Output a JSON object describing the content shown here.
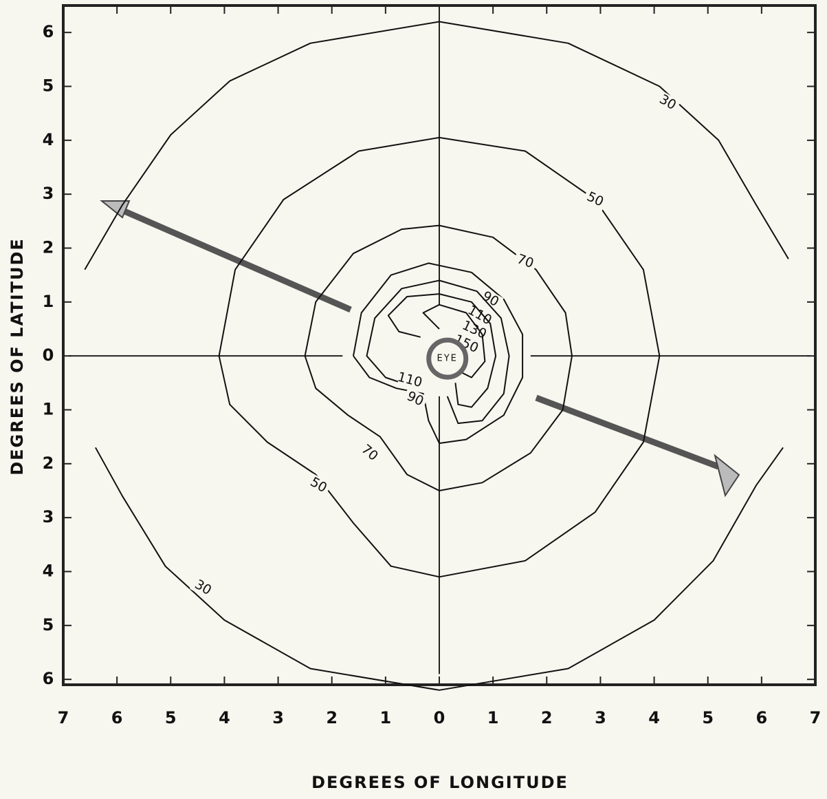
{
  "chart_data": {
    "type": "contour",
    "xlabel": "DEGREES OF LONGITUDE",
    "ylabel": "DEGREES OF LATITUDE",
    "annotation": "EYE",
    "xlim": [
      -7,
      7
    ],
    "ylim": [
      -6.1,
      6.5
    ],
    "xticks": [
      {
        "value": -7,
        "label": "7"
      },
      {
        "value": -6,
        "label": "6"
      },
      {
        "value": -5,
        "label": "5"
      },
      {
        "value": -4,
        "label": "4"
      },
      {
        "value": -3,
        "label": "3"
      },
      {
        "value": -2,
        "label": "2"
      },
      {
        "value": -1,
        "label": "1"
      },
      0,
      1,
      2,
      3,
      4,
      5,
      6,
      7
    ],
    "yticks": [
      6,
      5,
      4,
      3,
      2,
      1,
      0,
      {
        "value": -1,
        "label": "1"
      },
      {
        "value": -2,
        "label": "2"
      },
      {
        "value": -3,
        "label": "3"
      },
      {
        "value": -4,
        "label": "4"
      },
      {
        "value": -5,
        "label": "5"
      },
      {
        "value": -6,
        "label": "6"
      }
    ],
    "color": "#111111",
    "series": [
      {
        "level": 30,
        "x": [
          -6.6,
          -5.9,
          -5.0,
          -3.9,
          -2.4,
          0,
          2.4,
          4.1,
          5.2,
          5.9,
          6.5,
          null,
          -6.4,
          -5.9,
          -5.1,
          -4.0,
          -2.4,
          0,
          2.4,
          4.0,
          5.1,
          5.9,
          6.4
        ],
        "y": [
          1.6,
          2.8,
          4.1,
          5.1,
          5.8,
          6.2,
          5.8,
          5.0,
          4.0,
          2.8,
          1.8,
          null,
          -1.7,
          -2.6,
          -3.9,
          -4.9,
          -5.8,
          -6.2,
          -5.8,
          -4.9,
          -3.8,
          -2.4,
          -1.7
        ]
      },
      {
        "level": 50,
        "x": [
          -4.1,
          -3.8,
          -2.9,
          -1.5,
          0,
          1.6,
          2.9,
          3.8,
          4.1,
          3.8,
          2.9,
          1.6,
          0,
          -0.9,
          -1.6,
          -2.3,
          -3.2,
          -3.9,
          -4.1
        ],
        "y": [
          0,
          1.6,
          2.9,
          3.8,
          4.05,
          3.8,
          2.9,
          1.6,
          0,
          -1.6,
          -2.9,
          -3.8,
          -4.1,
          -3.9,
          -3.1,
          -2.2,
          -1.6,
          -0.9,
          0
        ]
      },
      {
        "level": 70,
        "x": [
          -2.5,
          -2.3,
          -1.6,
          -0.7,
          0,
          1.0,
          1.8,
          2.35,
          2.47,
          2.3,
          1.7,
          0.8,
          0,
          -0.6,
          -1.1,
          -1.7,
          -2.3,
          -2.5
        ],
        "y": [
          0,
          1.0,
          1.9,
          2.35,
          2.42,
          2.2,
          1.6,
          0.8,
          0,
          -1.0,
          -1.8,
          -2.35,
          -2.5,
          -2.2,
          -1.5,
          -1.1,
          -0.6,
          0
        ]
      },
      {
        "level": 90,
        "x": [
          -1.6,
          -1.45,
          -0.9,
          -0.2,
          0.6,
          1.2,
          1.55,
          1.55,
          1.2,
          0.5,
          0,
          -0.2,
          -0.3,
          -0.8,
          -1.3,
          -1.6
        ],
        "y": [
          0,
          0.8,
          1.5,
          1.72,
          1.55,
          1.05,
          0.4,
          -0.4,
          -1.1,
          -1.55,
          -1.62,
          -1.2,
          -0.7,
          -0.6,
          -0.4,
          0
        ]
      },
      {
        "level": 110,
        "x": [
          -0.4,
          -1.0,
          -1.35,
          -1.2,
          -0.7,
          0,
          0.7,
          1.15,
          1.3,
          1.2,
          0.8,
          0.35,
          0.15
        ],
        "y": [
          -0.6,
          -0.4,
          0,
          0.7,
          1.25,
          1.4,
          1.2,
          0.7,
          0,
          -0.7,
          -1.2,
          -1.25,
          -0.75
        ]
      },
      {
        "level": 130,
        "x": [
          -0.35,
          -0.75,
          -0.95,
          -0.6,
          0,
          0.6,
          0.95,
          1.05,
          0.9,
          0.6,
          0.35,
          0.3
        ],
        "y": [
          0.35,
          0.45,
          0.75,
          1.1,
          1.15,
          1.0,
          0.6,
          0,
          -0.6,
          -0.95,
          -0.9,
          -0.5
        ]
      },
      {
        "level": 150,
        "x": [
          0.0,
          -0.3,
          0,
          0.5,
          0.8,
          0.85,
          0.6,
          0.4
        ],
        "y": [
          0.5,
          0.8,
          0.95,
          0.8,
          0.4,
          -0.1,
          -0.4,
          -0.3
        ]
      }
    ]
  }
}
